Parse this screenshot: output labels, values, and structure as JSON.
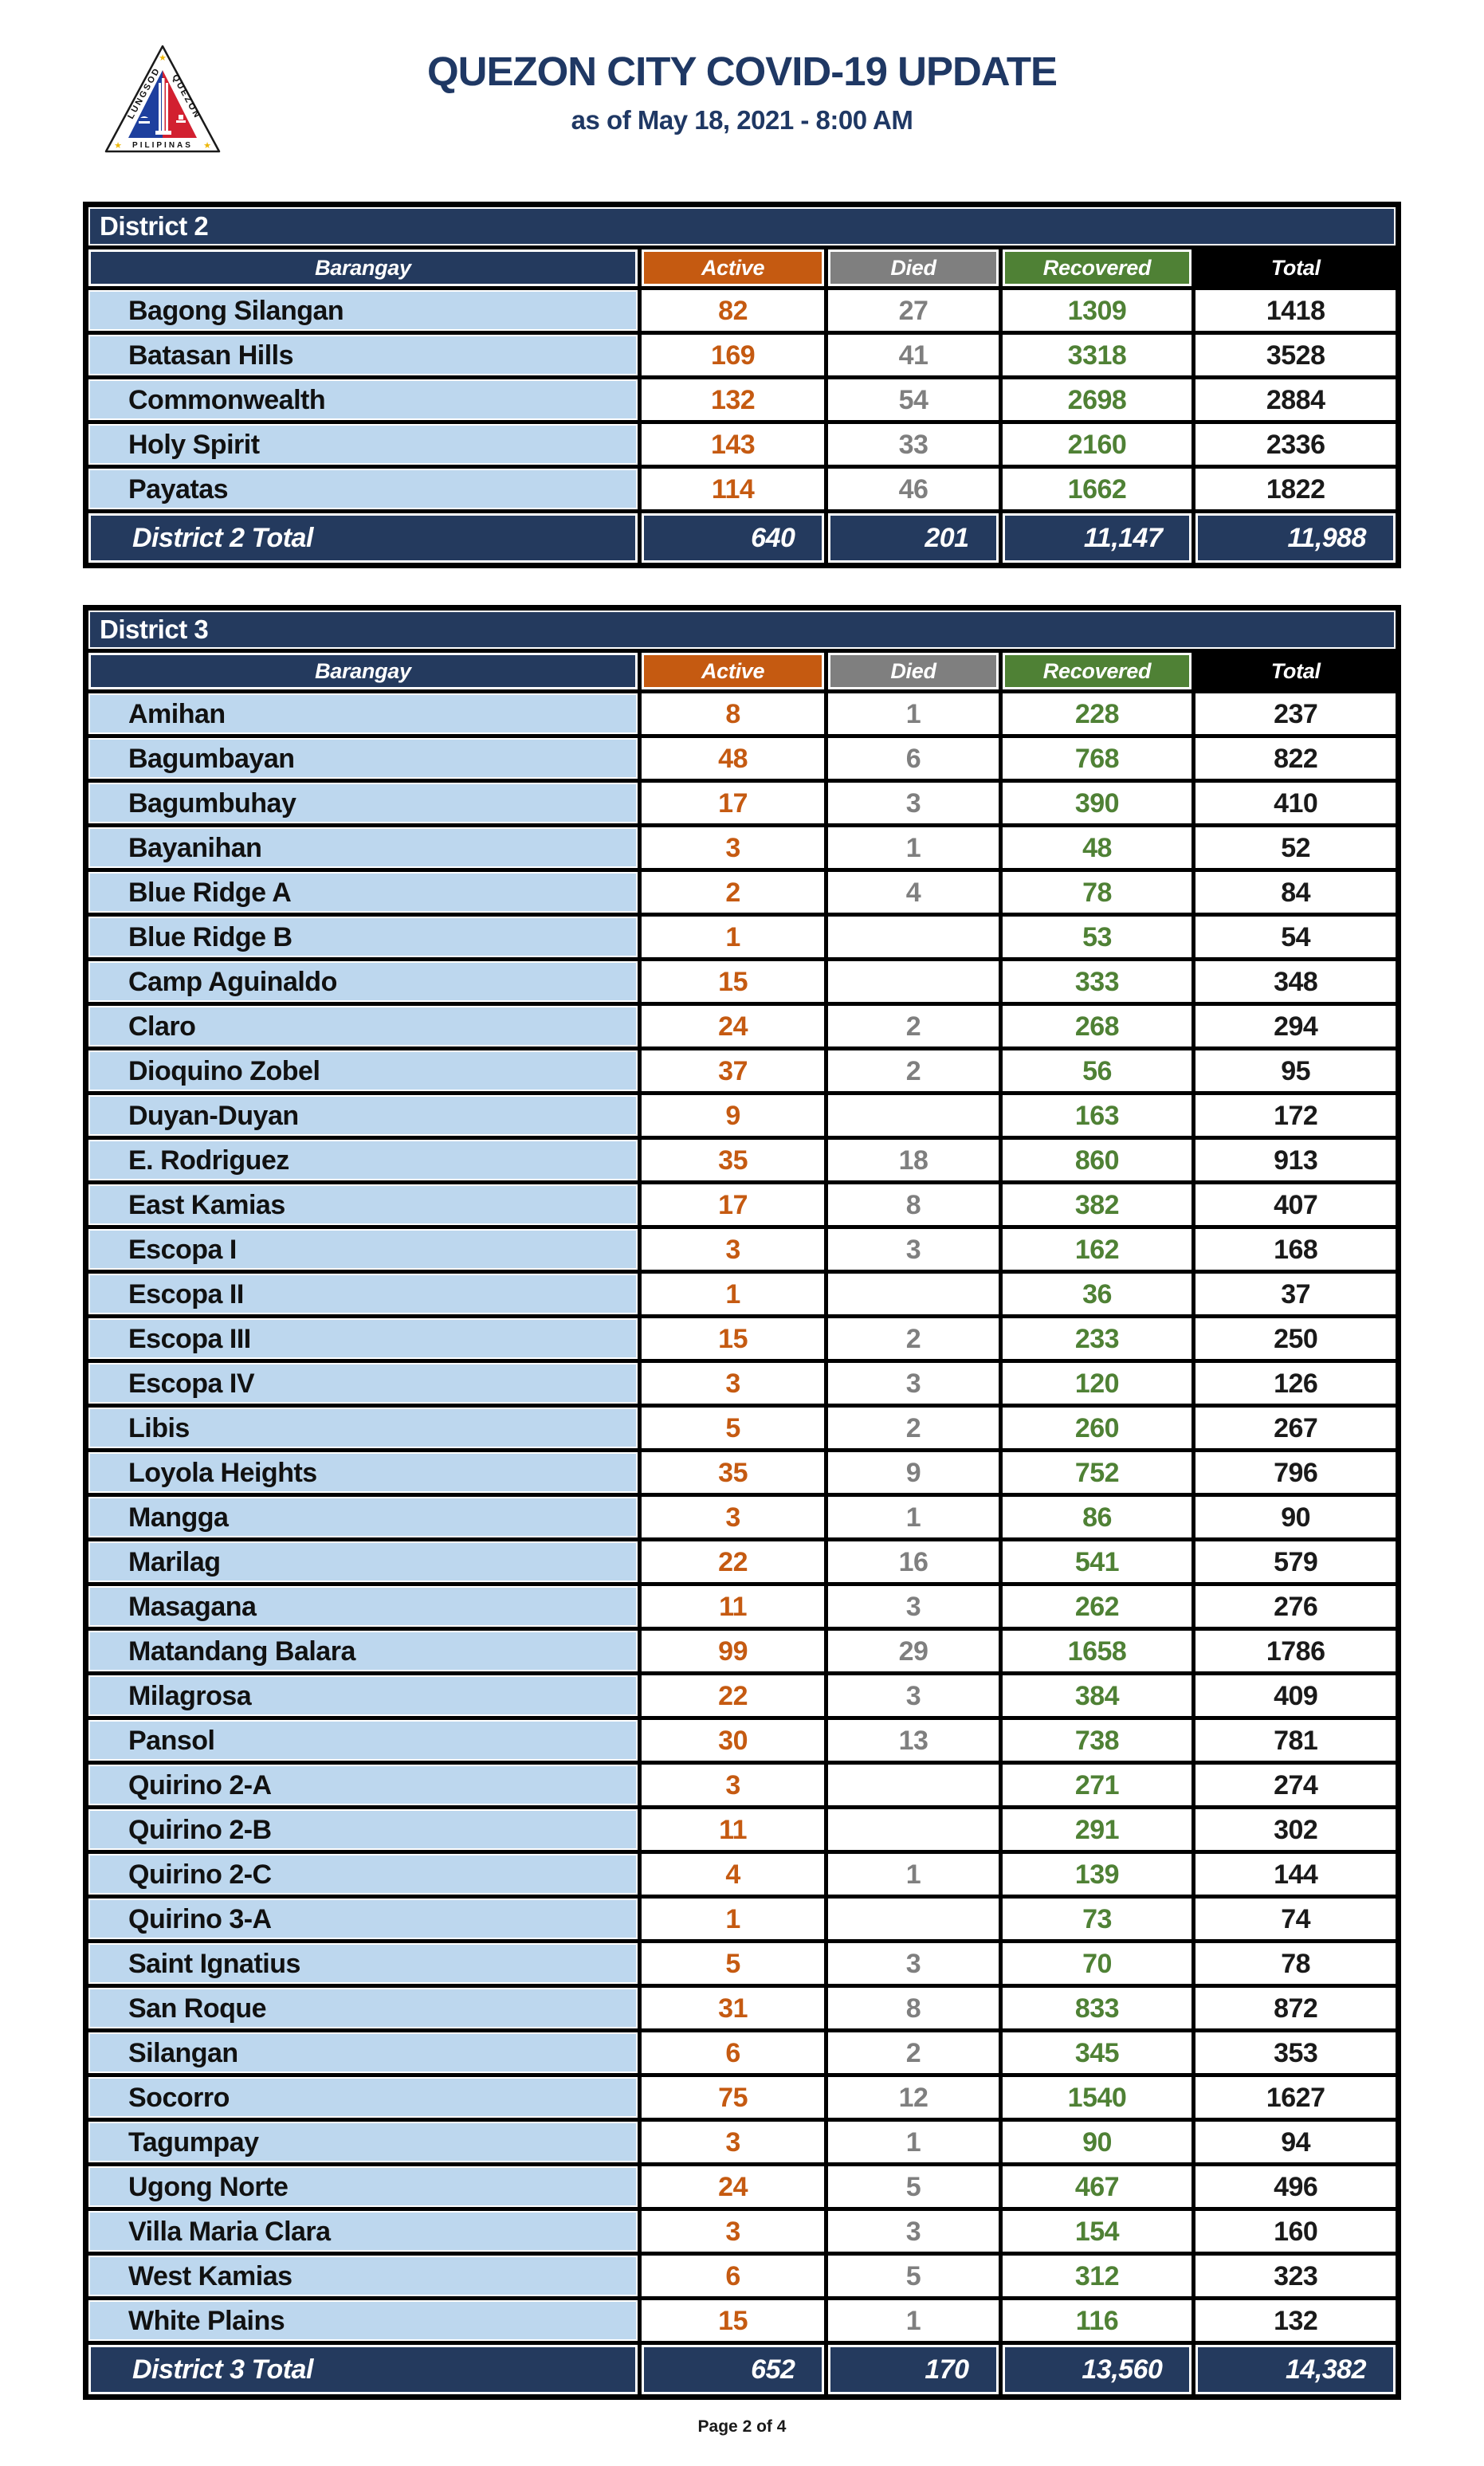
{
  "page": {
    "title": "QUEZON CITY COVID-19 UPDATE",
    "subtitle": "as of May 18, 2021 - 8:00 AM",
    "footer": "Page 2 of 4"
  },
  "logo": {
    "name": "quezon-city-seal",
    "text_left": "LUNGSOD",
    "text_right": "QUEZON",
    "text_bottom": "PILIPINAS"
  },
  "colors": {
    "navy_bar": "#243A5E",
    "title_navy": "#1F3864",
    "active_orange": "#C55A11",
    "died_gray": "#7F7F7F",
    "recovered_green": "#4F8135",
    "total_black": "#000000",
    "barangay_blue": "#BDD7EE"
  },
  "columns": [
    "Barangay",
    "Active",
    "Died",
    "Recovered",
    "Total"
  ],
  "tables": [
    {
      "district": "District 2",
      "rows": [
        [
          "Bagong Silangan",
          "82",
          "27",
          "1309",
          "1418"
        ],
        [
          "Batasan Hills",
          "169",
          "41",
          "3318",
          "3528"
        ],
        [
          "Commonwealth",
          "132",
          "54",
          "2698",
          "2884"
        ],
        [
          "Holy Spirit",
          "143",
          "33",
          "2160",
          "2336"
        ],
        [
          "Payatas",
          "114",
          "46",
          "1662",
          "1822"
        ]
      ],
      "total": {
        "label": "District 2 Total",
        "values": [
          "640",
          "201",
          "11,147",
          "11,988"
        ]
      }
    },
    {
      "district": "District 3",
      "rows": [
        [
          "Amihan",
          "8",
          "1",
          "228",
          "237"
        ],
        [
          "Bagumbayan",
          "48",
          "6",
          "768",
          "822"
        ],
        [
          "Bagumbuhay",
          "17",
          "3",
          "390",
          "410"
        ],
        [
          "Bayanihan",
          "3",
          "1",
          "48",
          "52"
        ],
        [
          "Blue Ridge A",
          "2",
          "4",
          "78",
          "84"
        ],
        [
          "Blue Ridge B",
          "1",
          "",
          "53",
          "54"
        ],
        [
          "Camp Aguinaldo",
          "15",
          "",
          "333",
          "348"
        ],
        [
          "Claro",
          "24",
          "2",
          "268",
          "294"
        ],
        [
          "Dioquino Zobel",
          "37",
          "2",
          "56",
          "95"
        ],
        [
          "Duyan-Duyan",
          "9",
          "",
          "163",
          "172"
        ],
        [
          "E. Rodriguez",
          "35",
          "18",
          "860",
          "913"
        ],
        [
          "East Kamias",
          "17",
          "8",
          "382",
          "407"
        ],
        [
          "Escopa I",
          "3",
          "3",
          "162",
          "168"
        ],
        [
          "Escopa II",
          "1",
          "",
          "36",
          "37"
        ],
        [
          "Escopa III",
          "15",
          "2",
          "233",
          "250"
        ],
        [
          "Escopa IV",
          "3",
          "3",
          "120",
          "126"
        ],
        [
          "Libis",
          "5",
          "2",
          "260",
          "267"
        ],
        [
          "Loyola Heights",
          "35",
          "9",
          "752",
          "796"
        ],
        [
          "Mangga",
          "3",
          "1",
          "86",
          "90"
        ],
        [
          "Marilag",
          "22",
          "16",
          "541",
          "579"
        ],
        [
          "Masagana",
          "11",
          "3",
          "262",
          "276"
        ],
        [
          "Matandang Balara",
          "99",
          "29",
          "1658",
          "1786"
        ],
        [
          "Milagrosa",
          "22",
          "3",
          "384",
          "409"
        ],
        [
          "Pansol",
          "30",
          "13",
          "738",
          "781"
        ],
        [
          "Quirino 2-A",
          "3",
          "",
          "271",
          "274"
        ],
        [
          "Quirino 2-B",
          "11",
          "",
          "291",
          "302"
        ],
        [
          "Quirino 2-C",
          "4",
          "1",
          "139",
          "144"
        ],
        [
          "Quirino 3-A",
          "1",
          "",
          "73",
          "74"
        ],
        [
          "Saint Ignatius",
          "5",
          "3",
          "70",
          "78"
        ],
        [
          "San Roque",
          "31",
          "8",
          "833",
          "872"
        ],
        [
          "Silangan",
          "6",
          "2",
          "345",
          "353"
        ],
        [
          "Socorro",
          "75",
          "12",
          "1540",
          "1627"
        ],
        [
          "Tagumpay",
          "3",
          "1",
          "90",
          "94"
        ],
        [
          "Ugong Norte",
          "24",
          "5",
          "467",
          "496"
        ],
        [
          "Villa Maria Clara",
          "3",
          "3",
          "154",
          "160"
        ],
        [
          "West Kamias",
          "6",
          "5",
          "312",
          "323"
        ],
        [
          "White Plains",
          "15",
          "1",
          "116",
          "132"
        ]
      ],
      "total": {
        "label": "District 3 Total",
        "values": [
          "652",
          "170",
          "13,560",
          "14,382"
        ]
      }
    }
  ]
}
